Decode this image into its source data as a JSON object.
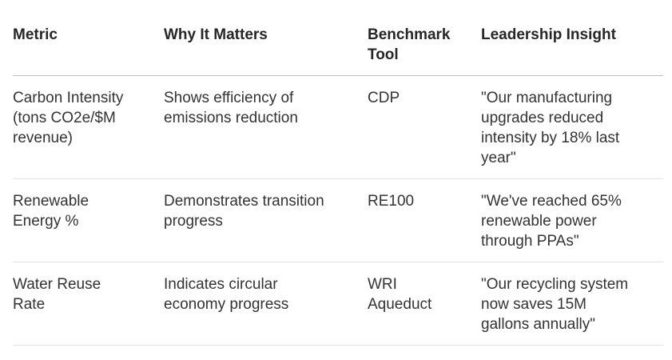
{
  "table": {
    "columns": [
      "Metric",
      "Why It Matters",
      "Benchmark Tool",
      "Leadership Insight"
    ],
    "rows": [
      [
        "Carbon Intensity (tons CO2e/$M revenue)",
        "Shows efficiency of emissions reduction",
        "CDP",
        "\"Our manufacturing upgrades reduced intensity by 18% last year\""
      ],
      [
        "Renewable Energy %",
        "Demonstrates transition progress",
        "RE100",
        "\"We've reached 65% renewable power through PPAs\""
      ],
      [
        "Water Reuse Rate",
        "Indicates circular economy progress",
        "WRI Aqueduct",
        "\"Our recycling system now saves 15M gallons annually\""
      ]
    ]
  }
}
